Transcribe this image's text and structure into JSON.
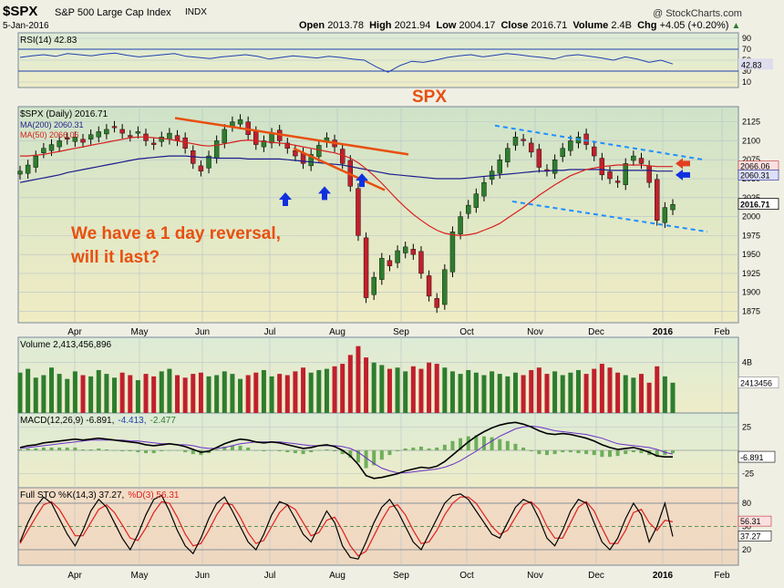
{
  "header": {
    "symbol": "$SPX",
    "name": "S&P 500 Large Cap Index",
    "exchange": "INDX",
    "date": "5-Jan-2016",
    "source": "@ StockCharts.com",
    "open_label": "Open",
    "open": "2013.78",
    "high_label": "High",
    "high": "2021.94",
    "low_label": "Low",
    "low": "2004.17",
    "close_label": "Close",
    "close": "2016.71",
    "volume_label": "Volume",
    "volume": "2.4B",
    "chg_label": "Chg",
    "chg": "+4.05 (+0.20%)",
    "chg_arrow": "▲"
  },
  "annotations": {
    "spx_label": "SPX",
    "reversal_line1": "We have a 1 day reversal,",
    "reversal_line2": "will it last?"
  },
  "colors": {
    "up": "#2e7d2e",
    "down": "#c0202c",
    "ma200": "#1c1c8c",
    "ma50": "#d82020",
    "trendline": "#e85010",
    "channel": "#1e90ff",
    "arrow": "#1030e0",
    "annotation": "#e85010",
    "rsi": "#2040b0",
    "sto_k": "#000000",
    "sto_d": "#e02020"
  },
  "chart_data": [
    {
      "type": "line",
      "panel": "RSI",
      "title": "RSI(14) 42.83",
      "ylim": [
        0,
        100
      ],
      "ticks": [
        90,
        70,
        50,
        30,
        10
      ],
      "last_value": "42.83",
      "series": [
        {
          "name": "RSI(14)",
          "values": [
            55,
            58,
            60,
            57,
            62,
            60,
            58,
            61,
            63,
            59,
            56,
            58,
            60,
            62,
            57,
            55,
            53,
            56,
            58,
            60,
            57,
            52,
            55,
            58,
            56,
            54,
            57,
            55,
            52,
            50,
            38,
            28,
            40,
            48,
            46,
            50,
            55,
            58,
            60,
            56,
            59,
            62,
            60,
            57,
            55,
            52,
            58,
            60,
            57,
            54,
            50,
            56,
            52,
            46,
            50,
            43
          ]
        }
      ]
    },
    {
      "type": "candlestick",
      "panel": "Price",
      "title": "$SPX (Daily) 2016.71",
      "xlabel_ticks": [
        "Apr",
        "May",
        "Jun",
        "Jul",
        "Aug",
        "Sep",
        "Oct",
        "Nov",
        "Dec",
        "2016",
        "Feb"
      ],
      "ylim": [
        1860,
        2145
      ],
      "ticks": [
        2125,
        2100,
        2075,
        2050,
        2025,
        2000,
        1975,
        1950,
        1925,
        1900,
        1875
      ],
      "price_labels": {
        "ma50": "2066.06",
        "ma200": "2060.31",
        "close": "2016.71"
      },
      "series": [
        {
          "name": "$SPX",
          "close": [
            2060,
            2068,
            2080,
            2090,
            2095,
            2100,
            2102,
            2105,
            2098,
            2108,
            2112,
            2115,
            2118,
            2110,
            2106,
            2112,
            2100,
            2095,
            2105,
            2110,
            2100,
            2090,
            2070,
            2060,
            2080,
            2100,
            2115,
            2125,
            2128,
            2108,
            2095,
            2100,
            2110,
            2100,
            2090,
            2080,
            2070,
            2082,
            2094,
            2104,
            2092,
            2070,
            2040,
            1975,
            1893,
            1920,
            1945,
            1935,
            1955,
            1960,
            1950,
            1925,
            1895,
            1880,
            1930,
            1980,
            2000,
            2015,
            2030,
            2045,
            2060,
            2075,
            2090,
            2105,
            2100,
            2085,
            2065,
            2060,
            2075,
            2090,
            2100,
            2105,
            2095,
            2080,
            2055,
            2050,
            2045,
            2070,
            2080,
            2070,
            2045,
            1995,
            2012,
            2016
          ]
        },
        {
          "name": "MA(200) 2060.31",
          "values": [
            2045,
            2047,
            2049,
            2051,
            2053,
            2055,
            2058,
            2060,
            2062,
            2064,
            2066,
            2068,
            2070,
            2072,
            2074,
            2076,
            2077,
            2078,
            2079,
            2080,
            2080,
            2080,
            2079,
            2078,
            2078,
            2077,
            2077,
            2077,
            2077,
            2076,
            2076,
            2076,
            2076,
            2076,
            2075,
            2074,
            2073,
            2072,
            2071,
            2070,
            2069,
            2068,
            2066,
            2064,
            2062,
            2060,
            2058,
            2056,
            2055,
            2054,
            2053,
            2052,
            2051,
            2050,
            2050,
            2050,
            2050,
            2051,
            2052,
            2053,
            2054,
            2055,
            2056,
            2057,
            2058,
            2059,
            2060,
            2060,
            2061,
            2061,
            2062,
            2062,
            2062,
            2062,
            2062,
            2061,
            2061,
            2061,
            2061,
            2061,
            2061,
            2060,
            2060,
            2060
          ]
        },
        {
          "name": "MA(50) 2066.06",
          "values": [
            2080,
            2080,
            2081,
            2082,
            2084,
            2086,
            2088,
            2090,
            2092,
            2094,
            2096,
            2098,
            2100,
            2102,
            2104,
            2105,
            2105,
            2104,
            2103,
            2102,
            2100,
            2098,
            2096,
            2094,
            2093,
            2094,
            2096,
            2098,
            2100,
            2101,
            2100,
            2099,
            2098,
            2097,
            2096,
            2094,
            2092,
            2090,
            2088,
            2086,
            2084,
            2081,
            2077,
            2071,
            2063,
            2054,
            2044,
            2033,
            2022,
            2012,
            2003,
            1995,
            1988,
            1982,
            1978,
            1976,
            1975,
            1976,
            1978,
            1982,
            1986,
            1991,
            1998,
            2005,
            2012,
            2020,
            2028,
            2035,
            2042,
            2048,
            2054,
            2058,
            2062,
            2064,
            2066,
            2067,
            2068,
            2068,
            2068,
            2068,
            2067,
            2066,
            2066,
            2066
          ]
        }
      ]
    },
    {
      "type": "bar",
      "panel": "Volume",
      "title": "Volume 2,413,456,896",
      "ylim": [
        0,
        6
      ],
      "ticks": [
        "4B"
      ],
      "last_value": "2413456",
      "series": [
        {
          "name": "Volume (B)",
          "values": [
            3.2,
            3.5,
            2.8,
            3.0,
            3.6,
            3.1,
            2.7,
            3.3,
            3.0,
            2.9,
            3.4,
            3.1,
            2.8,
            3.2,
            3.0,
            2.6,
            3.1,
            2.9,
            3.3,
            3.5,
            3.0,
            2.8,
            3.1,
            3.2,
            2.9,
            3.0,
            3.3,
            3.1,
            2.7,
            3.0,
            3.2,
            3.4,
            2.9,
            3.1,
            3.0,
            3.3,
            3.6,
            3.2,
            3.4,
            3.5,
            3.7,
            3.9,
            4.6,
            5.3,
            4.4,
            4.0,
            3.8,
            3.5,
            3.6,
            3.3,
            3.7,
            3.5,
            4.0,
            3.9,
            3.6,
            3.3,
            3.1,
            3.4,
            3.2,
            3.0,
            3.3,
            3.1,
            2.9,
            3.2,
            3.0,
            3.4,
            3.6,
            3.1,
            3.3,
            3.0,
            3.2,
            3.4,
            3.1,
            3.5,
            3.9,
            3.6,
            3.2,
            3.0,
            2.8,
            3.1,
            2.4,
            3.7,
            2.9,
            2.4
          ]
        }
      ]
    },
    {
      "type": "line",
      "panel": "MACD",
      "title_main": "MACD(12,26,9) -6.891,",
      "title_signal": "-4.413,",
      "title_hist": "-2.477",
      "ylim": [
        -40,
        40
      ],
      "ticks": [
        25,
        0,
        -25
      ],
      "last_value": "-6.891",
      "series": [
        {
          "name": "MACD",
          "values": [
            3,
            5,
            6,
            8,
            9,
            10,
            11,
            12,
            11,
            12,
            13,
            12,
            11,
            10,
            9,
            8,
            6,
            5,
            6,
            7,
            6,
            4,
            1,
            -2,
            -1,
            3,
            7,
            10,
            12,
            11,
            9,
            8,
            9,
            8,
            6,
            4,
            2,
            3,
            5,
            6,
            4,
            0,
            -6,
            -15,
            -27,
            -30,
            -29,
            -27,
            -25,
            -22,
            -20,
            -18,
            -19,
            -17,
            -12,
            -5,
            2,
            9,
            15,
            20,
            24,
            27,
            29,
            30,
            28,
            25,
            21,
            18,
            17,
            18,
            17,
            15,
            13,
            10,
            6,
            3,
            1,
            2,
            3,
            1,
            -2,
            -6,
            -7,
            -7
          ]
        },
        {
          "name": "Signal",
          "values": [
            2,
            3,
            4,
            5,
            6,
            7,
            8,
            9,
            10,
            11,
            11,
            11,
            11,
            11,
            10,
            10,
            9,
            8,
            7,
            7,
            6,
            6,
            5,
            3,
            2,
            2,
            3,
            5,
            7,
            8,
            9,
            9,
            9,
            9,
            8,
            7,
            6,
            5,
            5,
            5,
            5,
            4,
            2,
            -2,
            -8,
            -14,
            -19,
            -22,
            -24,
            -24,
            -23,
            -22,
            -21,
            -20,
            -18,
            -15,
            -11,
            -6,
            -1,
            5,
            10,
            15,
            19,
            23,
            25,
            26,
            25,
            23,
            21,
            20,
            19,
            18,
            17,
            15,
            13,
            10,
            7,
            6,
            5,
            4,
            3,
            1,
            -2,
            -4
          ]
        }
      ]
    },
    {
      "type": "line",
      "panel": "Full STO",
      "title_main": "Full STO %K(14,3) 37.27,",
      "title_d": "%D(3) 56.31",
      "ylim": [
        0,
        100
      ],
      "ticks": [
        80,
        50,
        20
      ],
      "last_values": {
        "k": "37.27",
        "d": "56.31"
      },
      "series": [
        {
          "name": "%K",
          "values": [
            30,
            55,
            75,
            88,
            80,
            60,
            40,
            25,
            45,
            70,
            85,
            75,
            55,
            35,
            20,
            40,
            65,
            85,
            90,
            70,
            45,
            25,
            15,
            35,
            60,
            80,
            88,
            70,
            50,
            30,
            20,
            40,
            65,
            82,
            78,
            60,
            40,
            30,
            50,
            70,
            55,
            25,
            10,
            8,
            30,
            55,
            75,
            85,
            70,
            50,
            30,
            20,
            40,
            60,
            80,
            90,
            92,
            85,
            70,
            55,
            40,
            35,
            55,
            75,
            85,
            80,
            60,
            35,
            25,
            45,
            70,
            85,
            80,
            55,
            30,
            20,
            35,
            60,
            80,
            65,
            30,
            50,
            80,
            37
          ]
        },
        {
          "name": "%D",
          "values": [
            28,
            45,
            62,
            78,
            82,
            72,
            55,
            38,
            38,
            55,
            72,
            78,
            68,
            52,
            35,
            32,
            48,
            68,
            82,
            80,
            62,
            40,
            25,
            28,
            45,
            65,
            80,
            78,
            62,
            42,
            28,
            32,
            50,
            68,
            78,
            72,
            55,
            38,
            42,
            58,
            62,
            45,
            25,
            12,
            18,
            38,
            58,
            75,
            78,
            65,
            45,
            28,
            30,
            45,
            65,
            80,
            88,
            88,
            80,
            65,
            50,
            40,
            45,
            62,
            78,
            82,
            72,
            50,
            35,
            35,
            55,
            75,
            82,
            70,
            48,
            28,
            28,
            45,
            68,
            72,
            55,
            45,
            58,
            56
          ]
        }
      ]
    }
  ]
}
